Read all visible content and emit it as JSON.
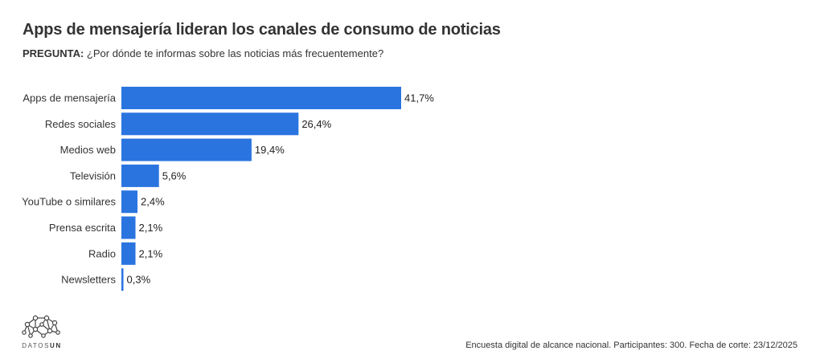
{
  "title": "Apps de mensajería lideran los canales de consumo de noticias",
  "subtitle": {
    "prefix": "PREGUNTA:",
    "text": " ¿Por dónde te informas sobre las noticias más frecuentemente?"
  },
  "chart_data": {
    "type": "bar",
    "orientation": "horizontal",
    "categories": [
      "Apps de mensajería",
      "Redes sociales",
      "Medios web",
      "Televisión",
      "YouTube o similares",
      "Prensa escrita",
      "Radio",
      "Newsletters"
    ],
    "values": [
      41.7,
      26.4,
      19.4,
      5.6,
      2.4,
      2.1,
      2.1,
      0.3
    ],
    "value_labels": [
      "41,7%",
      "26,4%",
      "19,4%",
      "5,6%",
      "2,4%",
      "2,1%",
      "2,1%",
      "0,3%"
    ],
    "xlim": [
      0,
      41.7
    ],
    "color": "#2a74e0",
    "grid": false
  },
  "logo": {
    "name": "datosun-logo-icon",
    "text_light": "DATOS",
    "text_bold": "UN"
  },
  "footer": "Encuesta digital de alcance nacional. Participantes: 300. Fecha de corte: 23/12/2025"
}
